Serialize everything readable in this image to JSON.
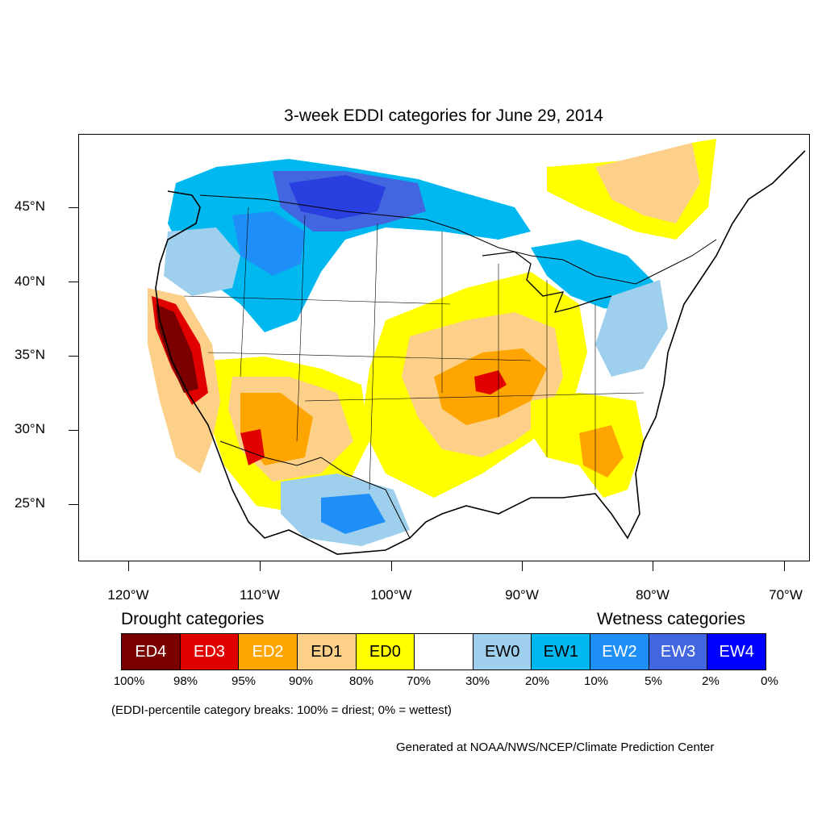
{
  "title": "3-week EDDI categories for June 29, 2014",
  "map": {
    "region": "Contiguous United States",
    "lat_labels": [
      "45°N",
      "40°N",
      "35°N",
      "30°N",
      "25°N"
    ],
    "lon_labels": [
      "120°W",
      "110°W",
      "100°W",
      "90°W",
      "80°W",
      "70°W"
    ]
  },
  "legend": {
    "drought_heading": "Drought categories",
    "wetness_heading": "Wetness categories",
    "categories": [
      {
        "label": "ED4",
        "color": "#7a0000",
        "text_color": "#ffffff"
      },
      {
        "label": "ED3",
        "color": "#e00000",
        "text_color": "#ffffff"
      },
      {
        "label": "ED2",
        "color": "#ffa500",
        "text_color": "#ffffff"
      },
      {
        "label": "ED1",
        "color": "#fdd08a",
        "text_color": "#000000"
      },
      {
        "label": "ED0",
        "color": "#ffff00",
        "text_color": "#000000"
      },
      {
        "label": "",
        "color": "#ffffff",
        "text_color": "#000000"
      },
      {
        "label": "EW0",
        "color": "#9ed0ee",
        "text_color": "#000000"
      },
      {
        "label": "EW1",
        "color": "#00b8f0",
        "text_color": "#000000"
      },
      {
        "label": "EW2",
        "color": "#1e8ff8",
        "text_color": "#ffffff"
      },
      {
        "label": "EW3",
        "color": "#4166e0",
        "text_color": "#ffffff"
      },
      {
        "label": "EW4",
        "color": "#0000ff",
        "text_color": "#ffffff"
      }
    ],
    "percent_breaks": [
      "100%",
      "98%",
      "95%",
      "90%",
      "80%",
      "70%",
      "30%",
      "20%",
      "10%",
      "5%",
      "2%",
      "0%"
    ]
  },
  "note": "(EDDI-percentile category breaks: 100% = driest; 0% = wettest)",
  "credit": "Generated at NOAA/NWS/NCEP/Climate Prediction Center"
}
